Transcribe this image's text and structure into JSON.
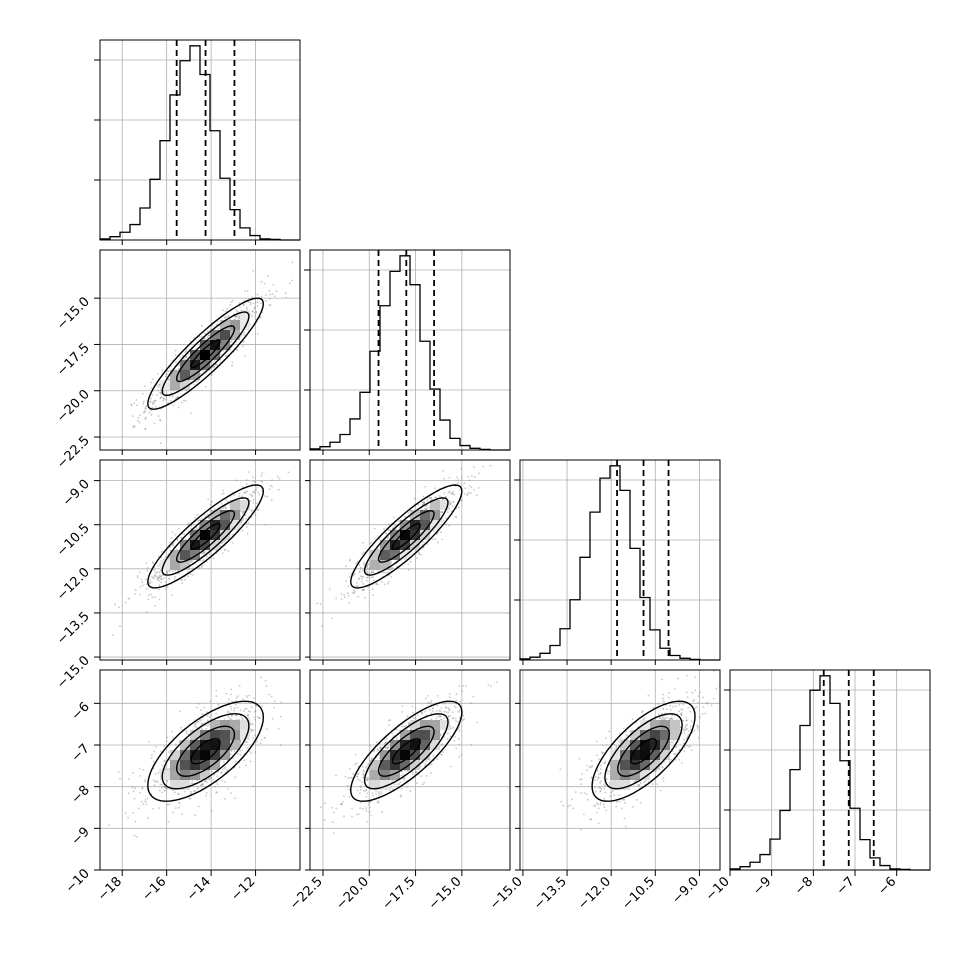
{
  "chart_data": {
    "type": "corner",
    "parameters": [
      {
        "index": 0,
        "range": [
          -19.0,
          -10.0
        ],
        "ticks": [
          -18,
          -16,
          -14,
          -12
        ],
        "tick_labels": [
          "−18",
          "−16",
          "−14",
          "−12"
        ],
        "quantiles": [
          -15.55,
          -14.25,
          -12.95
        ]
      },
      {
        "index": 1,
        "range": [
          -23.2,
          -12.4
        ],
        "ticks": [
          -22.5,
          -20.0,
          -17.5,
          -15.0
        ],
        "tick_labels": [
          "−22.5",
          "−20.0",
          "−17.5",
          "−15.0"
        ],
        "quantiles": [
          -19.5,
          -18.0,
          -16.5
        ]
      },
      {
        "index": 2,
        "range": [
          -15.1,
          -8.3
        ],
        "ticks": [
          -15.0,
          -13.5,
          -12.0,
          -10.5,
          -9.0
        ],
        "tick_labels": [
          "−15.0",
          "−13.5",
          "−12.0",
          "−10.5",
          "−9.0"
        ],
        "quantiles": [
          -11.8,
          -10.9,
          -10.05
        ]
      },
      {
        "index": 3,
        "range": [
          -10.0,
          -5.2
        ],
        "ticks": [
          -10,
          -9,
          -8,
          -7,
          -6
        ],
        "tick_labels": [
          "−10",
          "−9",
          "−8",
          "−7",
          "−6"
        ],
        "quantiles": [
          -7.75,
          -7.15,
          -6.55
        ]
      }
    ],
    "histograms": [
      {
        "index": 0,
        "counts": [
          2,
          6,
          14,
          28,
          58,
          110,
          180,
          263,
          325,
          352,
          300,
          198,
          112,
          55,
          22,
          8,
          2,
          1,
          0,
          0
        ],
        "ymax": 352
      },
      {
        "index": 1,
        "counts": [
          2,
          6,
          14,
          28,
          56,
          104,
          178,
          260,
          322,
          350,
          298,
          196,
          110,
          54,
          21,
          8,
          3,
          1,
          0,
          0
        ],
        "ymax": 350
      },
      {
        "index": 2,
        "counts": [
          2,
          5,
          12,
          26,
          56,
          108,
          184,
          265,
          326,
          348,
          304,
          200,
          112,
          54,
          21,
          8,
          3,
          1,
          0,
          0
        ],
        "ymax": 348
      },
      {
        "index": 3,
        "counts": [
          2,
          6,
          14,
          28,
          56,
          108,
          182,
          262,
          326,
          352,
          302,
          198,
          112,
          55,
          22,
          8,
          2,
          1,
          0,
          0
        ],
        "ymax": 352
      }
    ],
    "correlations": [
      {
        "x": 0,
        "y": 1,
        "rho": 0.9
      },
      {
        "x": 0,
        "y": 2,
        "rho": 0.88
      },
      {
        "x": 1,
        "y": 2,
        "rho": 0.88
      },
      {
        "x": 0,
        "y": 3,
        "rho": 0.68
      },
      {
        "x": 1,
        "y": 3,
        "rho": 0.78
      },
      {
        "x": 2,
        "y": 3,
        "rho": 0.7
      }
    ],
    "contour_levels_sigma": [
      0.5,
      1.0,
      1.5,
      2.0
    ],
    "grid": true,
    "colors": {
      "ink": "#000000",
      "grid": "#b0b0b0",
      "points": "#888888"
    }
  }
}
